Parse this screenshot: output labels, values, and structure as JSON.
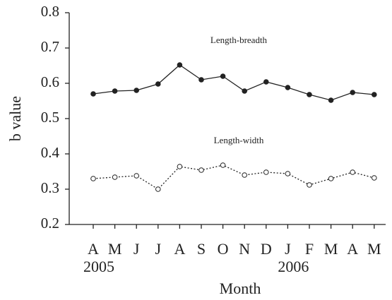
{
  "chart_data": {
    "type": "line",
    "xlabel": "Month",
    "ylabel": "b value",
    "categories": [
      "A",
      "M",
      "J",
      "J",
      "A",
      "S",
      "O",
      "N",
      "D",
      "J",
      "F",
      "M",
      "A",
      "M"
    ],
    "years": [
      "2005",
      null,
      null,
      null,
      null,
      null,
      null,
      null,
      null,
      "2006",
      null,
      null,
      null,
      null
    ],
    "series": [
      {
        "name": "Length-breadth",
        "color": "#222222",
        "line_style": "solid",
        "marker_fill": "filled",
        "values": [
          0.57,
          0.578,
          0.58,
          0.598,
          0.652,
          0.61,
          0.62,
          0.578,
          0.604,
          0.588,
          0.568,
          0.552,
          0.574,
          0.568
        ]
      },
      {
        "name": "Length-width",
        "color": "#222222",
        "line_style": "dotted",
        "marker_fill": "hollow",
        "values": [
          0.33,
          0.334,
          0.338,
          0.3,
          0.364,
          0.354,
          0.368,
          0.34,
          0.348,
          0.344,
          0.312,
          0.33,
          0.348,
          0.332
        ]
      }
    ],
    "ylim": [
      0.2,
      0.8
    ],
    "yticks": [
      0.2,
      0.3,
      0.4,
      0.5,
      0.6,
      0.7,
      0.8
    ],
    "grid": false
  }
}
